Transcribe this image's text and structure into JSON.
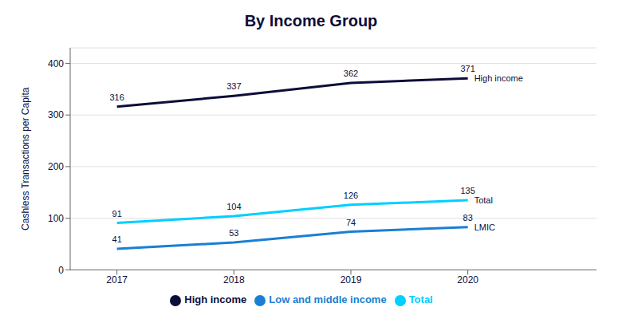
{
  "chart_data": {
    "type": "line",
    "title": "By Income Group",
    "ylabel": "Cashless Transactions per Capita",
    "x": [
      2017,
      2018,
      2019,
      2020
    ],
    "xlim": [
      2016.6,
      2021.1
    ],
    "xticks": [
      2017,
      2018,
      2019,
      2020
    ],
    "ylim": [
      0,
      430
    ],
    "yticks": [
      0,
      100,
      200,
      300,
      400
    ],
    "grid": true,
    "legend": "bottom",
    "data_labels": true,
    "series": [
      {
        "name": "Total",
        "color": "#00CFFF",
        "values": [
          91,
          104,
          126,
          135
        ]
      },
      {
        "name": "Low and middle income",
        "color": "#1A7FD4",
        "values": [
          41,
          53,
          74,
          83
        ]
      },
      {
        "name": "High income",
        "color": "#0D0D3A",
        "values": [
          316,
          337,
          362,
          371
        ]
      }
    ],
    "annotations": [
      {
        "text": "Total",
        "x": 2020,
        "y": 135
      },
      {
        "text": "LMIC",
        "x": 2020,
        "y": 83
      },
      {
        "text": "High income",
        "x": 2020,
        "y": 371
      }
    ]
  }
}
